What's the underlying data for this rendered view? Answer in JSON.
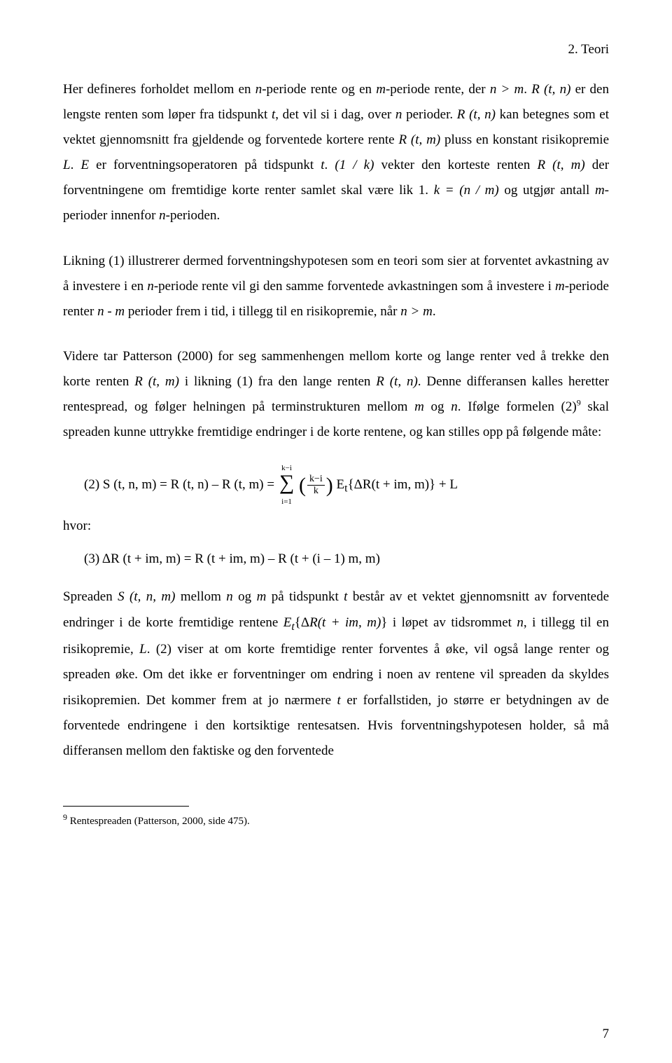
{
  "header": {
    "section": "2. Teori"
  },
  "p1": {
    "t1": "Her defineres forholdet mellom en ",
    "i1": "n",
    "t2": "-periode rente og en ",
    "i2": "m",
    "t3": "-periode rente, der ",
    "i3": "n > m",
    "t4": ". ",
    "i4": "R (t, n)",
    "t5": " er den lengste renten som løper fra tidspunkt ",
    "i5": "t",
    "t6": ", det vil si i dag, over ",
    "i6": "n",
    "t7": " perioder. ",
    "i7": "R (t, n)",
    "t8": " kan betegnes som et vektet gjennomsnitt fra gjeldende og forventede kortere rente ",
    "i8": "R (t, m)",
    "t9": " pluss en konstant risikopremie ",
    "i9": "L",
    "t10": ". ",
    "i10": "E",
    "t11": " er forventningsoperatoren på tidspunkt ",
    "i11": "t",
    "t12": ". ",
    "i12": "(1 / k)",
    "t13": " vekter den korteste renten ",
    "i13": "R (t, m)",
    "t14": " der forventningene om fremtidige korte renter samlet skal være lik 1. ",
    "i14": "k = (n / m)",
    "t15": " og utgjør antall ",
    "i15": "m",
    "t16": "-perioder innenfor ",
    "i16": "n",
    "t17": "-perioden."
  },
  "p2": {
    "t1": "Likning (1) illustrerer dermed forventningshypotesen som en teori som sier at forventet avkastning av å investere i en ",
    "i1": "n",
    "t2": "-periode rente vil gi den samme forventede avkastningen som å investere i ",
    "i2": "m",
    "t3": "-periode renter ",
    "i3": "n - m",
    "t4": " perioder frem i tid, i tillegg til en risikopremie, når ",
    "i4": "n > m",
    "t5": "."
  },
  "p3": {
    "t1": "Videre tar Patterson (2000) for seg sammenhengen mellom korte og lange renter ved å trekke den korte renten ",
    "i1": "R (t, m)",
    "t2": " i likning (1) fra den lange renten ",
    "i2": "R (t, n)",
    "t3": ". Denne differansen kalles heretter rentespread, og følger helningen på terminstrukturen mellom ",
    "i3": "m",
    "t4": " og ",
    "i4": "n",
    "t5": ". Ifølge formelen (2)",
    "sup": "9",
    "t6": " skal spreaden kunne uttrykke fremtidige endringer i de korte rentene, og kan stilles opp på følgende måte:"
  },
  "eq2": {
    "left": "(2) S (t, n, m) = R (t, n) – R (t, m) = ",
    "sumUpper": "k−i",
    "sumLower": "i=1",
    "fracNum": "k−i",
    "fracDen": "k",
    "right": " E",
    "sub": "t",
    "right2": "{ΔR(t + im, m)} + L"
  },
  "hvor": "hvor:",
  "eq3": {
    "text": "(3) ΔR (t + im, m) = R (t + im, m) – R (t + (i – 1) m, m)"
  },
  "p4": {
    "t1": "Spreaden ",
    "i1": "S (t, n, m)",
    "t2": " mellom ",
    "i2": "n",
    "t3": " og ",
    "i3": "m",
    "t4": " på tidspunkt ",
    "i4": "t",
    "t5": " består av et vektet gjennomsnitt av forventede endringer i de korte fremtidige rentene ",
    "i5": "E",
    "sub1": "t",
    "t6": "{Δ",
    "i6": "R(t + im, m)",
    "t7": "} i løpet av tidsrommet ",
    "i7": "n",
    "t8": ", i tillegg til en risikopremie, ",
    "i8": "L",
    "t9": ". (2) viser at om korte fremtidige renter forventes å øke, vil også lange renter og spreaden øke. Om det ikke er forventninger om endring i noen av rentene vil spreaden da skyldes risikopremien. Det kommer frem at jo nærmere ",
    "i9": "t",
    "t10": " er forfallstiden, jo større er betydningen av de forventede endringene i den kortsiktige rentesatsen. Hvis forventningshypotesen holder, så må differansen mellom den faktiske og den forventede"
  },
  "footnote": {
    "sup": "9",
    "text": " Rentespreaden (Patterson, 2000, side 475)."
  },
  "pageNumber": "7"
}
